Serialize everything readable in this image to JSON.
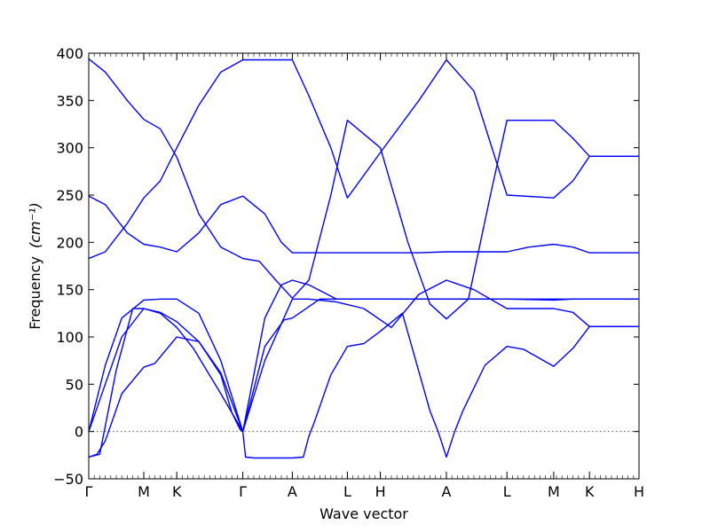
{
  "chart_data": {
    "type": "line",
    "title": "",
    "xlabel": "Wave vector",
    "ylabel": "Frequency",
    "ylabel_unit": "(cm⁻¹)",
    "ylim": [
      -50,
      400
    ],
    "yticks": [
      -50,
      0,
      50,
      100,
      150,
      200,
      250,
      300,
      350,
      400
    ],
    "xticks": [
      {
        "label": "Γ",
        "x": 0
      },
      {
        "label": "M",
        "x": 1
      },
      {
        "label": "K",
        "x": 1.6
      },
      {
        "label": "Γ",
        "x": 2.8
      },
      {
        "label": "A",
        "x": 3.7
      },
      {
        "label": "L",
        "x": 4.7
      },
      {
        "label": "H",
        "x": 5.3
      },
      {
        "label": "A",
        "x": 6.5
      },
      {
        "label": "L",
        "x": 7.6
      },
      {
        "label": "M",
        "x": 8.45
      },
      {
        "label": "K",
        "x": 9.1
      },
      {
        "label": "H",
        "x": 10
      }
    ],
    "xlim": [
      0,
      10
    ],
    "grid": false,
    "zero_line": true,
    "line_color": "#0000ff",
    "series": [
      {
        "x": [
          0,
          0.15,
          0.3,
          0.6,
          1.0,
          1.2,
          1.6,
          2.0,
          2.4,
          2.6,
          2.75,
          2.8,
          2.85,
          3.0,
          3.7,
          3.9,
          4.0,
          4.1,
          4.4,
          4.7,
          5.0,
          5.3,
          5.7,
          6.2,
          6.35,
          6.5,
          6.65,
          6.8,
          7.2,
          7.6,
          7.9,
          8.45,
          8.8,
          9.1,
          10
        ],
        "y": [
          -27,
          -24,
          -10,
          40,
          68,
          72,
          100,
          95,
          60,
          20,
          2,
          0,
          -27,
          -28,
          -28,
          -27,
          -5,
          10,
          60,
          90,
          93,
          106,
          125,
          22,
          0,
          -27,
          0,
          22,
          70,
          90,
          87,
          69,
          88,
          111,
          111
        ]
      },
      {
        "x": [
          0,
          0.3,
          0.6,
          1.0,
          1.3,
          1.6,
          1.9,
          2.4,
          2.8,
          3.2,
          3.55,
          3.7,
          4.2,
          4.7,
          5.3,
          6.0,
          6.5,
          7.0,
          7.3,
          7.6,
          8.45,
          8.8,
          9.1,
          10
        ],
        "y": [
          0,
          50,
          100,
          130,
          125,
          110,
          88,
          40,
          0,
          90,
          118,
          120,
          140,
          140,
          140,
          140,
          140,
          140,
          140,
          140,
          139,
          140,
          140,
          140
        ]
      },
      {
        "x": [
          0,
          0.3,
          0.6,
          1.0,
          1.3,
          1.6,
          2.0,
          2.4,
          2.8,
          3.2,
          3.5,
          3.7,
          4.0,
          4.5,
          5.0,
          5.5,
          6.0,
          6.5,
          7.0,
          7.6,
          8.45,
          9.1,
          10
        ],
        "y": [
          0,
          70,
          120,
          139,
          140,
          140,
          125,
          75,
          0,
          120,
          155,
          160,
          155,
          140,
          140,
          140,
          140,
          140,
          140,
          140,
          140,
          140,
          140
        ]
      },
      {
        "x": [
          0,
          0.2,
          0.5,
          0.8,
          1.0,
          1.3,
          1.6,
          2.0,
          2.4,
          2.8,
          3.2,
          3.7,
          4.0,
          4.5,
          5.0,
          5.5,
          6.0,
          6.5,
          7.0,
          7.6,
          8.0,
          8.45,
          8.8,
          9.1,
          10
        ],
        "y": [
          -27,
          -24,
          65,
          130,
          130,
          126,
          116,
          95,
          62,
          0,
          75,
          140,
          140,
          137,
          130,
          110,
          145,
          160,
          150,
          130,
          130,
          130,
          126,
          111,
          111
        ]
      },
      {
        "x": [
          0,
          0.3,
          0.7,
          1.0,
          1.3,
          1.6,
          2.0,
          2.4,
          2.8,
          3.2,
          3.5,
          3.7,
          4.2,
          4.7,
          5.3,
          6.0,
          6.5,
          7.0,
          7.6,
          8.0,
          8.45,
          8.8,
          9.1,
          10
        ],
        "y": [
          249,
          240,
          210,
          198,
          195,
          190,
          210,
          240,
          249,
          230,
          200,
          189,
          189,
          189,
          189,
          189,
          190,
          190,
          190,
          195,
          198,
          195,
          189,
          189
        ]
      },
      {
        "x": [
          0,
          0.3,
          0.7,
          1.0,
          1.3,
          1.6,
          2.0,
          2.4,
          2.8,
          3.1,
          3.4,
          3.7,
          4.0,
          4.4,
          4.7,
          5.3,
          6.0,
          6.5,
          7.0,
          7.6,
          8.45,
          8.8,
          9.1,
          10
        ],
        "y": [
          183,
          190,
          220,
          247,
          265,
          300,
          345,
          380,
          393,
          393,
          393,
          393,
          355,
          300,
          247,
          295,
          350,
          393,
          360,
          250,
          247,
          265,
          291,
          291
        ]
      },
      {
        "x": [
          0,
          0.3,
          0.7,
          1.0,
          1.3,
          1.6,
          2.0,
          2.4,
          2.8,
          3.1,
          3.4,
          3.7,
          4.0,
          4.4,
          4.7,
          5.3,
          5.8,
          6.2,
          6.5,
          6.9,
          7.3,
          7.6,
          8.45,
          8.8,
          9.1,
          10
        ],
        "y": [
          394,
          380,
          350,
          330,
          320,
          290,
          230,
          195,
          183,
          180,
          160,
          141,
          160,
          250,
          329,
          300,
          200,
          135,
          119,
          140,
          250,
          329,
          329,
          310,
          291,
          291
        ]
      }
    ]
  }
}
